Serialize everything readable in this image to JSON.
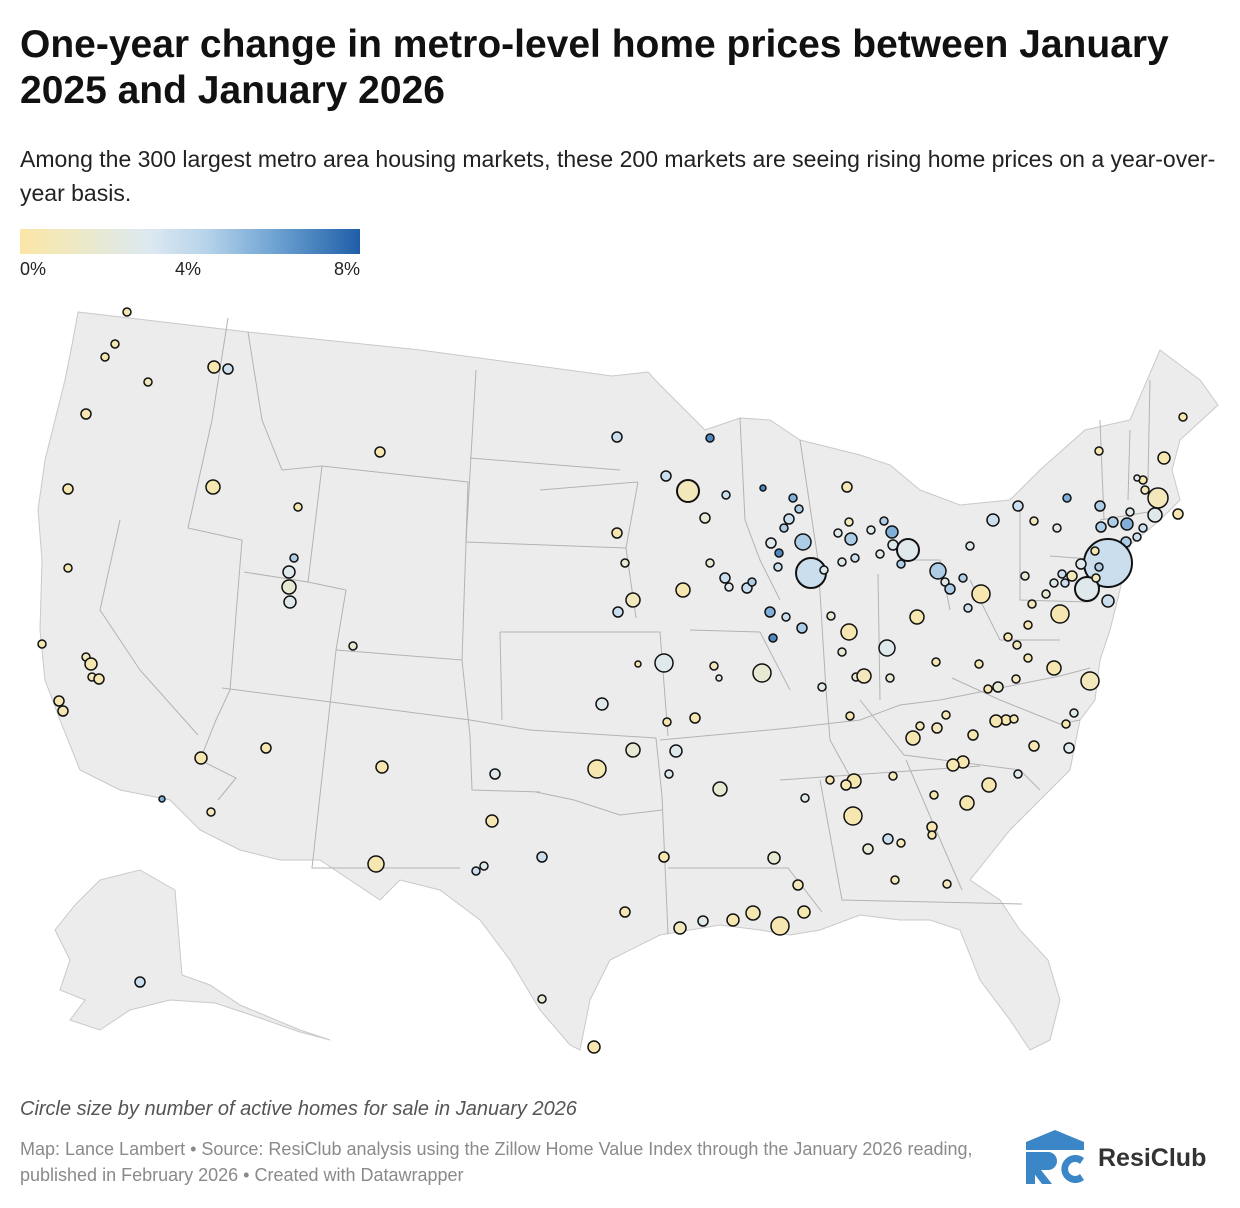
{
  "header": {
    "title": "One-year change in metro-level home prices between January 2025 and January 2026",
    "subtitle": "Among the 300 largest metro area housing markets, these 200 markets are seeing rising home prices on a year-over-year basis."
  },
  "legend": {
    "min_label": "0%",
    "mid_label": "4%",
    "max_label": "8%"
  },
  "colors": {
    "scale": [
      "#fbe6a6",
      "#ece9c8",
      "#dde9f1",
      "#b6d3ea",
      "#6ea3d2",
      "#1f5ea8"
    ],
    "land": "#ececec",
    "state_border": "#b3b3b3",
    "circle_stroke": "#111111",
    "logo_blue": "#3a86c6"
  },
  "footer": {
    "size_note": "Circle size by number of active homes for sale in January 2026",
    "credit": "Map: Lance Lambert • Source: ResiClub analysis using the Zillow Home Value Index through the January 2026 reading, published in February 2026 • Created with Datawrapper",
    "logo_text": "ResiClub"
  },
  "map_data": {
    "type": "bubble-map",
    "region": "United States metro areas",
    "color_metric": "one-year home price change (%)",
    "color_range": [
      0,
      8
    ],
    "size_metric": "active homes for sale (January 2026)",
    "marker_count_drawn": 186
  }
}
